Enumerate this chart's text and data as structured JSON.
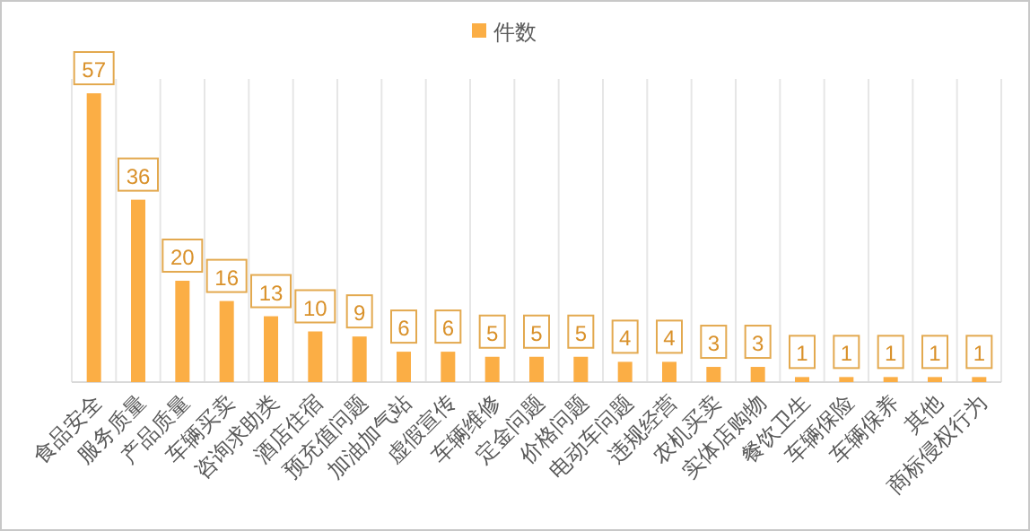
{
  "chart_data": {
    "type": "bar",
    "categories": [
      "食品安全",
      "服务质量",
      "产品质量",
      "车辆买卖",
      "咨询求助类",
      "酒店住宿",
      "预充值问题",
      "加油加气站",
      "虚假宣传",
      "车辆维修",
      "定金问题",
      "价格问题",
      "电动车问题",
      "违规经营",
      "农机买卖",
      "实体店购物",
      "餐饮卫生",
      "车辆保险",
      "车辆保养",
      "其他",
      "商标侵权行为"
    ],
    "series": [
      {
        "name": "件数",
        "color": "#fbae45",
        "values": [
          57,
          36,
          20,
          16,
          13,
          10,
          9,
          6,
          6,
          5,
          5,
          5,
          4,
          4,
          3,
          3,
          1,
          1,
          1,
          1,
          1
        ]
      }
    ],
    "data_labels": true,
    "grid": "x",
    "legend": "top"
  }
}
